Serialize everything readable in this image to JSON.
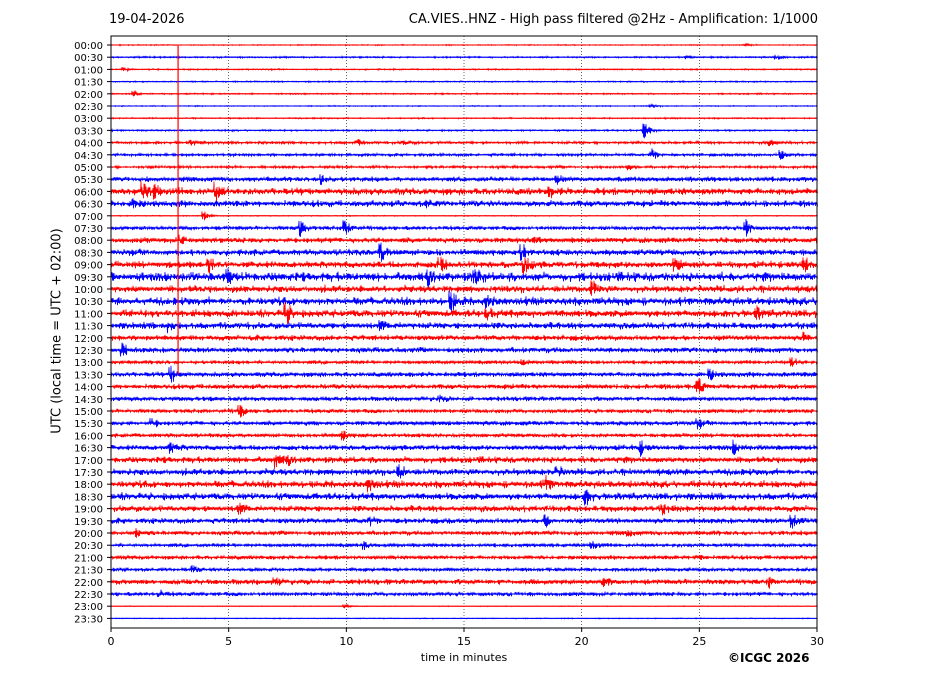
{
  "header": {
    "date": "19-04-2026",
    "title": "CA.VIES..HNZ - High pass filtered @2Hz - Amplification: 1/1000"
  },
  "footer": {
    "copyright": "©ICGC 2026"
  },
  "chart_data": {
    "type": "line",
    "title": "CA.VIES..HNZ - High pass filtered @2Hz - Amplification: 1/1000",
    "subtitle": "19-04-2026",
    "xlabel": "time in minutes",
    "ylabel": "UTC (local time = UTC + 02:00)",
    "xlim": [
      0,
      30
    ],
    "x_ticks": [
      0,
      5,
      10,
      15,
      20,
      25,
      30
    ],
    "y_ticks": [
      "00:00",
      "00:30",
      "01:00",
      "01:30",
      "02:00",
      "02:30",
      "03:00",
      "03:30",
      "04:00",
      "04:30",
      "05:00",
      "05:30",
      "06:00",
      "06:30",
      "07:00",
      "07:30",
      "08:00",
      "08:30",
      "09:00",
      "09:30",
      "10:00",
      "10:30",
      "11:00",
      "11:30",
      "12:00",
      "12:30",
      "13:00",
      "13:30",
      "14:00",
      "14:30",
      "15:00",
      "15:30",
      "16:00",
      "16:30",
      "17:00",
      "17:30",
      "18:00",
      "18:30",
      "19:00",
      "19:30",
      "20:00",
      "20:30",
      "21:00",
      "21:30",
      "22:00",
      "22:30",
      "23:00",
      "23:30"
    ],
    "trace_colors": [
      "#ff0000",
      "#0000ff"
    ],
    "grid": "vertical dotted",
    "series": [
      {
        "row": "00:00",
        "activity": 0.12,
        "events": [
          [
            27.0,
            0.25
          ]
        ]
      },
      {
        "row": "00:30",
        "activity": 0.18,
        "events": [
          [
            24.5,
            0.3
          ],
          [
            28.3,
            0.4
          ]
        ]
      },
      {
        "row": "01:00",
        "activity": 0.15,
        "events": [
          [
            0.6,
            0.3
          ]
        ]
      },
      {
        "row": "01:30",
        "activity": 0.15,
        "events": []
      },
      {
        "row": "02:00",
        "activity": 0.15,
        "events": [
          [
            1.0,
            0.6
          ]
        ]
      },
      {
        "row": "02:30",
        "activity": 0.12,
        "events": [
          [
            23.0,
            0.3
          ]
        ]
      },
      {
        "row": "03:00",
        "activity": 0.15,
        "events": []
      },
      {
        "row": "03:30",
        "activity": 0.18,
        "events": [
          [
            22.7,
            1.4
          ]
        ]
      },
      {
        "row": "04:00",
        "activity": 0.3,
        "events": [
          [
            3.5,
            0.4
          ],
          [
            10.5,
            0.5
          ],
          [
            12.5,
            0.4
          ],
          [
            28.0,
            0.5
          ]
        ]
      },
      {
        "row": "04:30",
        "activity": 0.3,
        "events": [
          [
            23.0,
            1.0
          ],
          [
            28.5,
            0.8
          ]
        ]
      },
      {
        "row": "05:00",
        "activity": 0.3,
        "events": [
          [
            22.0,
            0.5
          ]
        ]
      },
      {
        "row": "05:30",
        "activity": 0.55,
        "events": [
          [
            9.0,
            1.3
          ],
          [
            19.0,
            0.6
          ]
        ]
      },
      {
        "row": "06:00",
        "activity": 0.8,
        "events": [
          [
            1.4,
            1.4
          ],
          [
            1.9,
            1.1
          ],
          [
            4.5,
            1.3
          ],
          [
            18.7,
            0.6
          ]
        ]
      },
      {
        "row": "06:30",
        "activity": 0.7,
        "events": [
          [
            1.0,
            0.9
          ],
          [
            13.5,
            0.6
          ]
        ]
      },
      {
        "row": "07:00",
        "activity": 0.1,
        "events": [
          [
            4.0,
            0.8
          ]
        ]
      },
      {
        "row": "07:30",
        "activity": 0.45,
        "events": [
          [
            8.1,
            1.4
          ],
          [
            10.0,
            1.6
          ],
          [
            27.0,
            1.4
          ]
        ]
      },
      {
        "row": "08:00",
        "activity": 0.6,
        "events": [
          [
            3.0,
            0.7
          ],
          [
            18.0,
            0.6
          ]
        ]
      },
      {
        "row": "08:30",
        "activity": 0.7,
        "events": [
          [
            11.5,
            1.5
          ],
          [
            17.5,
            1.3
          ]
        ]
      },
      {
        "row": "09:00",
        "activity": 0.75,
        "events": [
          [
            4.2,
            1.3
          ],
          [
            14.0,
            1.5
          ],
          [
            17.6,
            1.4
          ],
          [
            24.0,
            1.2
          ],
          [
            29.5,
            1.3
          ]
        ]
      },
      {
        "row": "09:30",
        "activity": 1.0,
        "events": [
          [
            5.0,
            1.0
          ],
          [
            13.5,
            1.3
          ],
          [
            15.5,
            1.2
          ]
        ]
      },
      {
        "row": "10:00",
        "activity": 0.8,
        "events": [
          [
            20.5,
            1.1
          ]
        ]
      },
      {
        "row": "10:30",
        "activity": 0.9,
        "events": [
          [
            14.5,
            1.6
          ],
          [
            16.0,
            1.0
          ]
        ]
      },
      {
        "row": "11:00",
        "activity": 0.85,
        "events": [
          [
            7.5,
            1.5
          ],
          [
            16.0,
            0.8
          ],
          [
            27.5,
            0.8
          ]
        ]
      },
      {
        "row": "11:30",
        "activity": 0.75,
        "events": [
          [
            2.5,
            0.8
          ],
          [
            11.5,
            0.6
          ]
        ]
      },
      {
        "row": "12:00",
        "activity": 0.6,
        "events": [
          [
            29.5,
            0.8
          ]
        ]
      },
      {
        "row": "12:30",
        "activity": 0.6,
        "events": [
          [
            0.5,
            1.0
          ]
        ]
      },
      {
        "row": "13:00",
        "activity": 0.4,
        "events": [
          [
            17.5,
            0.5
          ],
          [
            29.0,
            0.7
          ]
        ]
      },
      {
        "row": "13:30",
        "activity": 0.55,
        "events": [
          [
            2.6,
            1.3
          ],
          [
            25.5,
            0.8
          ]
        ]
      },
      {
        "row": "14:00",
        "activity": 0.55,
        "events": [
          [
            25.0,
            1.3
          ]
        ]
      },
      {
        "row": "14:30",
        "activity": 0.5,
        "events": [
          [
            14.0,
            0.5
          ]
        ]
      },
      {
        "row": "15:00",
        "activity": 0.45,
        "events": [
          [
            5.5,
            1.1
          ]
        ]
      },
      {
        "row": "15:30",
        "activity": 0.5,
        "events": [
          [
            1.8,
            0.7
          ],
          [
            25.0,
            0.7
          ]
        ]
      },
      {
        "row": "16:00",
        "activity": 0.45,
        "events": [
          [
            9.9,
            0.8
          ]
        ]
      },
      {
        "row": "16:30",
        "activity": 0.6,
        "events": [
          [
            2.6,
            0.8
          ],
          [
            22.5,
            1.2
          ],
          [
            26.5,
            1.0
          ]
        ]
      },
      {
        "row": "17:00",
        "activity": 0.7,
        "events": [
          [
            7.0,
            1.2
          ],
          [
            7.5,
            0.9
          ]
        ]
      },
      {
        "row": "17:30",
        "activity": 0.75,
        "events": [
          [
            12.3,
            1.1
          ],
          [
            19.0,
            0.8
          ]
        ]
      },
      {
        "row": "18:00",
        "activity": 0.8,
        "events": [
          [
            11.0,
            1.0
          ],
          [
            18.5,
            1.0
          ]
        ]
      },
      {
        "row": "18:30",
        "activity": 0.8,
        "events": [
          [
            20.2,
            1.2
          ]
        ]
      },
      {
        "row": "19:00",
        "activity": 0.7,
        "events": [
          [
            5.5,
            0.7
          ],
          [
            23.5,
            0.6
          ]
        ]
      },
      {
        "row": "19:30",
        "activity": 0.6,
        "events": [
          [
            11.0,
            0.8
          ],
          [
            18.5,
            0.9
          ],
          [
            29.0,
            1.2
          ]
        ]
      },
      {
        "row": "20:00",
        "activity": 0.5,
        "events": [
          [
            1.1,
            0.6
          ],
          [
            22.0,
            0.5
          ]
        ]
      },
      {
        "row": "20:30",
        "activity": 0.4,
        "events": [
          [
            10.8,
            0.6
          ],
          [
            20.5,
            0.7
          ]
        ]
      },
      {
        "row": "21:00",
        "activity": 0.45,
        "events": [
          [
            25.0,
            0.5
          ]
        ]
      },
      {
        "row": "21:30",
        "activity": 0.4,
        "events": [
          [
            3.5,
            0.6
          ]
        ]
      },
      {
        "row": "22:00",
        "activity": 0.6,
        "events": [
          [
            7.0,
            0.8
          ],
          [
            21.0,
            0.9
          ],
          [
            28.0,
            0.8
          ]
        ]
      },
      {
        "row": "22:30",
        "activity": 0.45,
        "events": [
          [
            2.1,
            0.6
          ]
        ]
      },
      {
        "row": "23:00",
        "activity": 0.08,
        "events": [
          [
            10.0,
            0.3
          ]
        ]
      },
      {
        "row": "23:30",
        "activity": 0.1,
        "events": []
      }
    ],
    "spike": {
      "x": 2.85,
      "from_row": "00:00",
      "to_row": "13:30"
    }
  }
}
